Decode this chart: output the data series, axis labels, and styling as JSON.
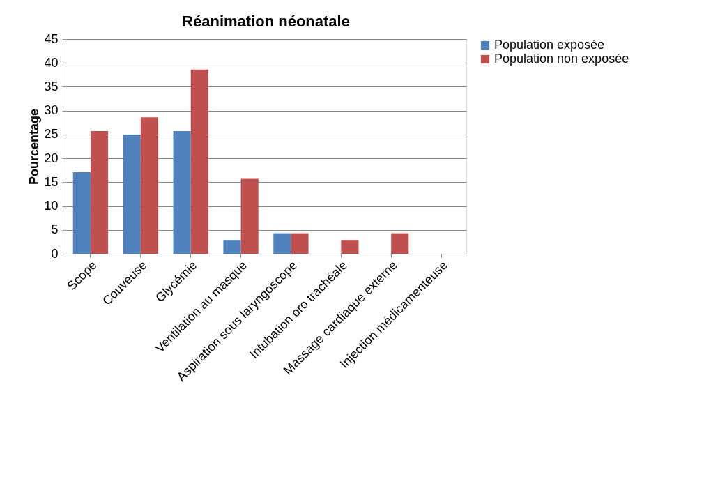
{
  "chart_data": {
    "type": "bar",
    "title": "Réanimation néonatale",
    "ylabel": "Pourcentage",
    "categories": [
      "Scope",
      "Couveuse",
      "Glycémie",
      "Ventilation au masque",
      "Aspiration sous laryngoscope",
      "Intubation oro trachéale",
      "Massage cardiaque externe",
      "Injection médicamenteuse"
    ],
    "series": [
      {
        "name": "Population exposée",
        "color": "#4f81bd",
        "values": [
          17.1,
          25.0,
          25.7,
          2.9,
          4.3,
          0,
          0,
          0
        ]
      },
      {
        "name": "Population non exposée",
        "color": "#c0504d",
        "values": [
          25.7,
          28.6,
          38.6,
          15.7,
          4.3,
          2.9,
          4.3,
          0
        ]
      }
    ],
    "ylim": [
      0,
      45
    ],
    "yticks": [
      0,
      5,
      10,
      15,
      20,
      25,
      30,
      35,
      40,
      45
    ],
    "grid": "y",
    "legend": "right"
  }
}
